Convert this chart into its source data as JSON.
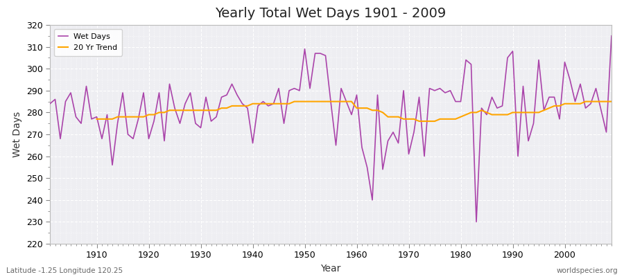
{
  "title": "Yearly Total Wet Days 1901 - 2009",
  "xlabel": "Year",
  "ylabel": "Wet Days",
  "footnote_left": "Latitude -1.25 Longitude 120.25",
  "footnote_right": "worldspecies.org",
  "ylim": [
    220,
    320
  ],
  "yticks": [
    220,
    230,
    240,
    250,
    260,
    270,
    280,
    290,
    300,
    310,
    320
  ],
  "wet_days_color": "#AA44AA",
  "trend_color": "#FFA500",
  "bg_color": "#EEEEF2",
  "wet_days_label": "Wet Days",
  "trend_label": "20 Yr Trend",
  "years": [
    1901,
    1902,
    1903,
    1904,
    1905,
    1906,
    1907,
    1908,
    1909,
    1910,
    1911,
    1912,
    1913,
    1914,
    1915,
    1916,
    1917,
    1918,
    1919,
    1920,
    1921,
    1922,
    1923,
    1924,
    1925,
    1926,
    1927,
    1928,
    1929,
    1930,
    1931,
    1932,
    1933,
    1934,
    1935,
    1936,
    1937,
    1938,
    1939,
    1940,
    1941,
    1942,
    1943,
    1944,
    1945,
    1946,
    1947,
    1948,
    1949,
    1950,
    1951,
    1952,
    1953,
    1954,
    1955,
    1956,
    1957,
    1958,
    1959,
    1960,
    1961,
    1962,
    1963,
    1964,
    1965,
    1966,
    1967,
    1968,
    1969,
    1970,
    1971,
    1972,
    1973,
    1974,
    1975,
    1976,
    1977,
    1978,
    1979,
    1980,
    1981,
    1982,
    1983,
    1984,
    1985,
    1986,
    1987,
    1988,
    1989,
    1990,
    1991,
    1992,
    1993,
    1994,
    1995,
    1996,
    1997,
    1998,
    1999,
    2000,
    2001,
    2002,
    2003,
    2004,
    2005,
    2006,
    2007,
    2008,
    2009
  ],
  "wet_days": [
    284,
    286,
    268,
    285,
    289,
    278,
    275,
    292,
    277,
    278,
    268,
    279,
    256,
    275,
    289,
    270,
    268,
    277,
    289,
    268,
    276,
    289,
    267,
    293,
    282,
    275,
    284,
    289,
    275,
    273,
    287,
    276,
    278,
    287,
    288,
    293,
    288,
    284,
    282,
    266,
    283,
    285,
    283,
    284,
    291,
    275,
    290,
    291,
    290,
    309,
    291,
    307,
    307,
    306,
    285,
    265,
    291,
    285,
    279,
    288,
    264,
    255,
    240,
    288,
    254,
    267,
    271,
    266,
    290,
    261,
    271,
    287,
    260,
    291,
    290,
    291,
    289,
    290,
    285,
    285,
    304,
    302,
    230,
    282,
    279,
    287,
    282,
    283,
    305,
    308,
    260,
    292,
    267,
    275,
    304,
    281,
    287,
    287,
    277,
    303,
    295,
    285,
    293,
    282,
    284,
    291,
    281,
    271,
    315
  ],
  "trend_years": [
    1910,
    1911,
    1912,
    1913,
    1914,
    1915,
    1916,
    1917,
    1918,
    1919,
    1920,
    1921,
    1922,
    1923,
    1924,
    1925,
    1926,
    1927,
    1928,
    1929,
    1930,
    1931,
    1932,
    1933,
    1934,
    1935,
    1936,
    1937,
    1938,
    1939,
    1940,
    1941,
    1942,
    1943,
    1944,
    1945,
    1946,
    1947,
    1948,
    1949,
    1950,
    1951,
    1952,
    1953,
    1954,
    1955,
    1956,
    1957,
    1958,
    1959,
    1960,
    1961,
    1962,
    1963,
    1964,
    1965,
    1966,
    1967,
    1968,
    1969,
    1970,
    1971,
    1972,
    1973,
    1974,
    1975,
    1976,
    1977,
    1978,
    1979,
    1980,
    1981,
    1982,
    1983,
    1984,
    1985,
    1986,
    1987,
    1988,
    1989,
    1990,
    1991,
    1992,
    1993,
    1994,
    1995,
    1996,
    1997,
    1998,
    1999,
    2000,
    2001,
    2002,
    2003,
    2004,
    2005,
    2006,
    2007,
    2008,
    2009
  ],
  "trend": [
    277,
    277,
    277,
    277,
    278,
    278,
    278,
    278,
    278,
    278,
    279,
    279,
    280,
    280,
    281,
    281,
    281,
    281,
    281,
    281,
    281,
    281,
    281,
    281,
    282,
    282,
    283,
    283,
    283,
    283,
    284,
    284,
    284,
    284,
    284,
    284,
    284,
    284,
    285,
    285,
    285,
    285,
    285,
    285,
    285,
    285,
    285,
    285,
    285,
    285,
    282,
    282,
    282,
    281,
    281,
    280,
    278,
    278,
    278,
    277,
    277,
    277,
    276,
    276,
    276,
    276,
    277,
    277,
    277,
    277,
    278,
    279,
    280,
    280,
    281,
    280,
    279,
    279,
    279,
    279,
    280,
    280,
    280,
    280,
    280,
    280,
    281,
    282,
    283,
    283,
    284,
    284,
    284,
    284,
    285,
    285,
    285,
    285,
    285,
    285
  ]
}
